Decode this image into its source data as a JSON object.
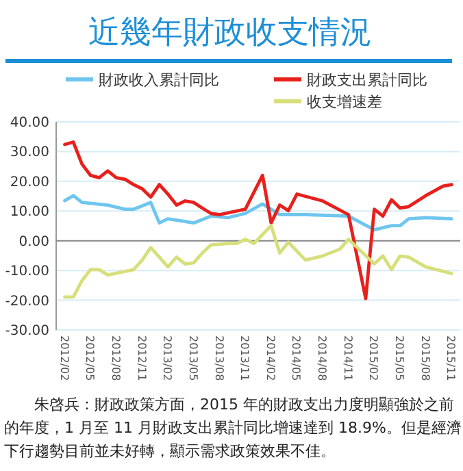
{
  "chart_data": {
    "type": "line",
    "title": "近幾年財政收支情況",
    "xlim": [
      "2012-01",
      "2015-12"
    ],
    "xticks": [
      {
        "value": "2012-02",
        "label": "2012/02"
      },
      {
        "value": "2012-05",
        "label": "2012/05"
      },
      {
        "value": "2012-08",
        "label": "2012/08"
      },
      {
        "value": "2012-11",
        "label": "2012/11"
      },
      {
        "value": "2013-02",
        "label": "2013/02"
      },
      {
        "value": "2013-05",
        "label": "2013/05"
      },
      {
        "value": "2013-08",
        "label": "2013/08"
      },
      {
        "value": "2013-11",
        "label": "2013/11"
      },
      {
        "value": "2014-02",
        "label": "2014/02"
      },
      {
        "value": "2014-05",
        "label": "2014/05"
      },
      {
        "value": "2014-08",
        "label": "2014/08"
      },
      {
        "value": "2014-11",
        "label": "2014/11"
      },
      {
        "value": "2015-02",
        "label": "2015/02"
      },
      {
        "value": "2015-05",
        "label": "2015/05"
      },
      {
        "value": "2015-08",
        "label": "2015/08"
      },
      {
        "value": "2015-11",
        "label": "2015/11"
      }
    ],
    "ylim": [
      -30,
      40
    ],
    "yticks": [
      {
        "value": 40,
        "label": "40.00"
      },
      {
        "value": 30,
        "label": "30.00"
      },
      {
        "value": 20,
        "label": "20.00"
      },
      {
        "value": 10,
        "label": "10.00"
      },
      {
        "value": 0,
        "label": "0.00"
      },
      {
        "value": -10,
        "label": "-10.00"
      },
      {
        "value": -20,
        "label": "-20.00"
      },
      {
        "value": -30,
        "label": "-30.00"
      }
    ],
    "grid": "y",
    "legend": "top",
    "ref_lines": [
      {
        "axis": "y",
        "value": 0,
        "color": "#888888"
      }
    ],
    "series": [
      {
        "name": "財政收入累計同比",
        "color": "#6ec6ee",
        "x": [
          "2012-02",
          "2012-03",
          "2012-04",
          "2012-07",
          "2012-09",
          "2012-10",
          "2012-12",
          "2013-01",
          "2013-02",
          "2013-05",
          "2013-07",
          "2013-09",
          "2013-11",
          "2014-01",
          "2014-03",
          "2014-06",
          "2014-11",
          "2015-02",
          "2015-04",
          "2015-05",
          "2015-06",
          "2015-08",
          "2015-11"
        ],
        "values": [
          13.5,
          15.2,
          12.9,
          12,
          10.6,
          10.6,
          12.9,
          6,
          7.4,
          6,
          8.3,
          7.8,
          9.2,
          12.4,
          8.8,
          8.8,
          8.3,
          3.7,
          5.1,
          5.1,
          7.4,
          7.8,
          7.4
        ]
      },
      {
        "name": "財政支出累計同比",
        "color": "#e8201c",
        "x": [
          "2012-02",
          "2012-03",
          "2012-04",
          "2012-05",
          "2012-06",
          "2012-07",
          "2012-08",
          "2012-09",
          "2012-10",
          "2012-11",
          "2012-12",
          "2013-01",
          "2013-02",
          "2013-03",
          "2013-04",
          "2013-05",
          "2013-06",
          "2013-07",
          "2013-08",
          "2013-11",
          "2014-01",
          "2014-02",
          "2014-03",
          "2014-04",
          "2014-05",
          "2014-08",
          "2014-11",
          "2015-01",
          "2015-02",
          "2015-03",
          "2015-04",
          "2015-05",
          "2015-06",
          "2015-08",
          "2015-10",
          "2015-11"
        ],
        "values": [
          32.4,
          33.2,
          25.8,
          22,
          21.2,
          23.5,
          21.2,
          20.7,
          18.9,
          17.5,
          14.7,
          18.9,
          15.7,
          12,
          13.4,
          12.9,
          11,
          9.2,
          8.8,
          10.6,
          22,
          6,
          12,
          10.1,
          15.7,
          13.4,
          8.8,
          -19.4,
          10.6,
          8.3,
          13.8,
          11,
          11.5,
          15.2,
          18.4,
          18.9
        ]
      },
      {
        "name": "收支增速差",
        "color": "#d6df7a",
        "x": [
          "2012-02",
          "2012-03",
          "2012-04",
          "2012-05",
          "2012-06",
          "2012-07",
          "2012-10",
          "2012-11",
          "2012-12",
          "2013-01",
          "2013-02",
          "2013-03",
          "2013-04",
          "2013-05",
          "2013-06",
          "2013-07",
          "2013-09",
          "2013-10",
          "2013-11",
          "2013-12",
          "2014-02",
          "2014-03",
          "2014-04",
          "2014-06",
          "2014-08",
          "2014-10",
          "2014-11",
          "2015-02",
          "2015-03",
          "2015-04",
          "2015-05",
          "2015-06",
          "2015-08",
          "2015-11"
        ],
        "values": [
          -18.9,
          -18.9,
          -13.4,
          -9.7,
          -9.7,
          -11.5,
          -9.7,
          -6.5,
          -2.3,
          -5.5,
          -8.8,
          -5.5,
          -7.8,
          -7.4,
          -4.1,
          -1.4,
          -0.9,
          -0.9,
          0.5,
          -0.9,
          5.1,
          -4.1,
          -0.5,
          -6.5,
          -5.1,
          -2.8,
          0.5,
          -7.8,
          -5.1,
          -9.7,
          -5.1,
          -5.5,
          -8.8,
          -11
        ]
      }
    ],
    "annotations": [
      "朱啓兵：財政政策方面，2015 年的財政支出力度明顯強於之前的年度，1 月至 11 月財政支出累計同比增速達到 18.9%。但是經濟下行趨勢目前並未好轉，顯示需求政策效果不佳。"
    ]
  }
}
